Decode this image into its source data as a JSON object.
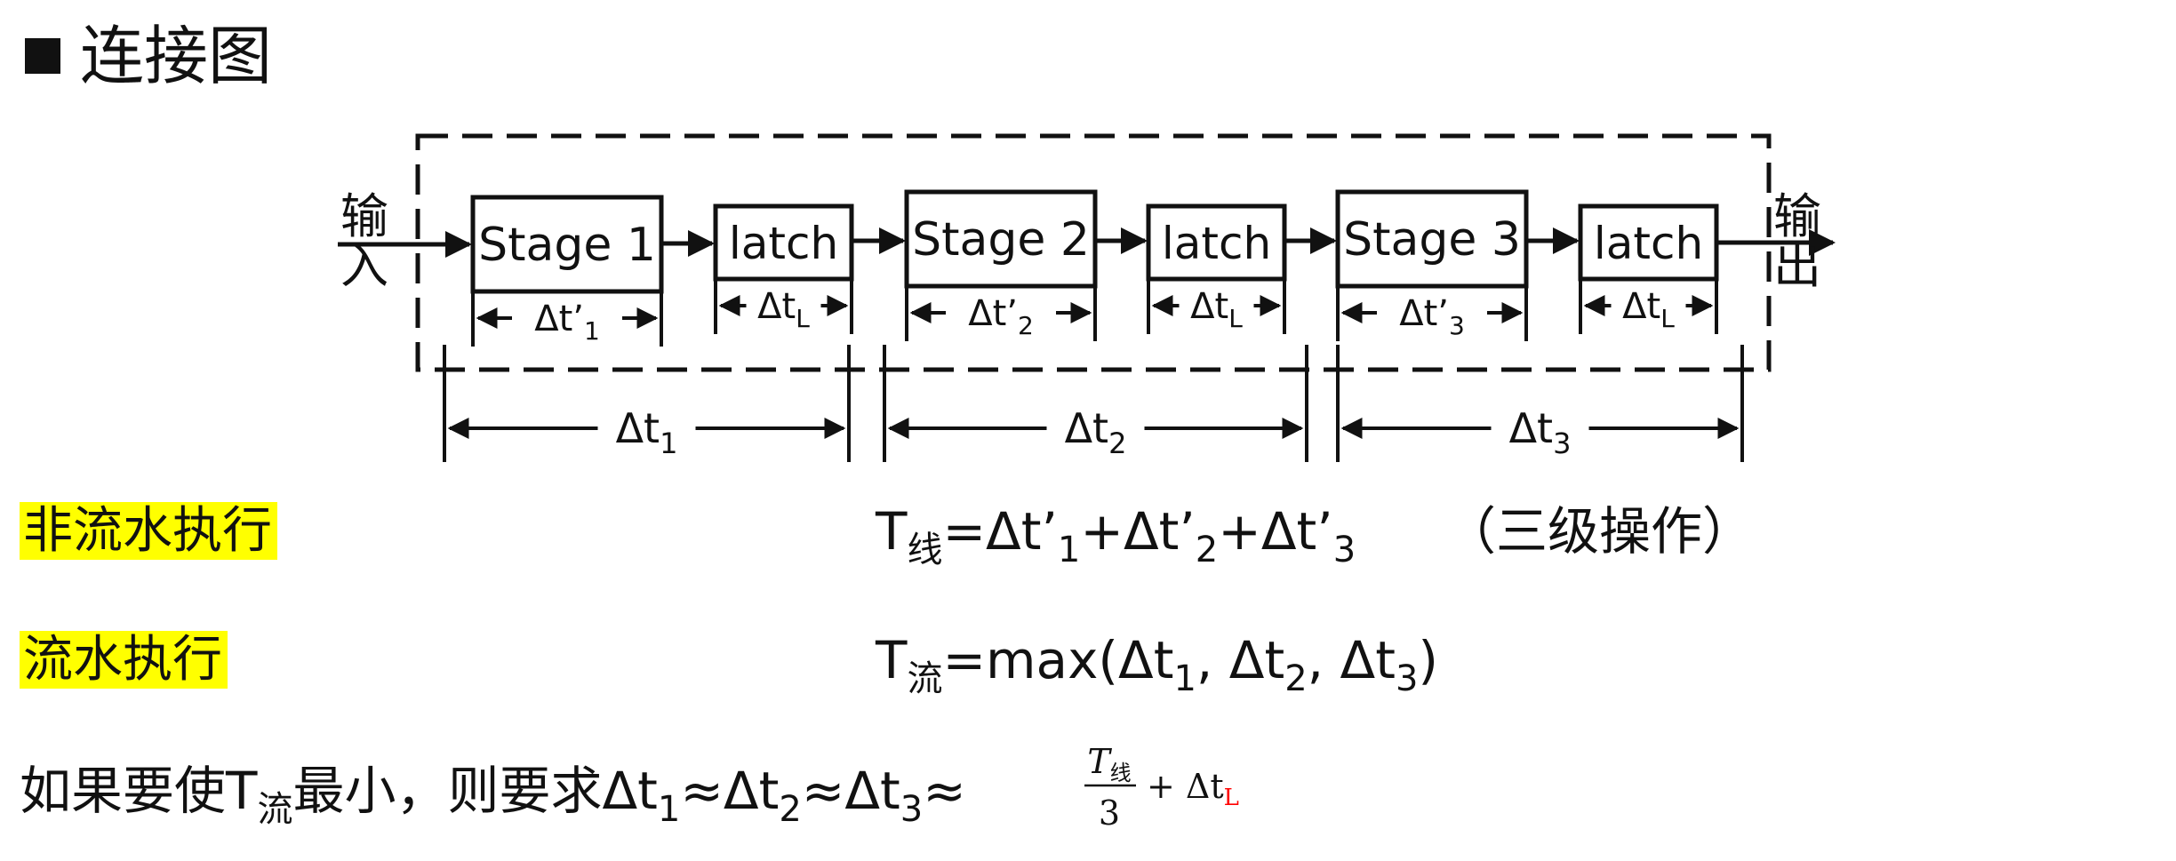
{
  "title": "连接图",
  "io": {
    "input": [
      "输",
      "入"
    ],
    "output": [
      "输",
      "出"
    ]
  },
  "blocks": [
    {
      "label": "Stage 1",
      "dim_base": "Δt’",
      "dim_sub": "1"
    },
    {
      "label": "latch",
      "dim_base": "Δt",
      "dim_sub": "L"
    },
    {
      "label": "Stage 2",
      "dim_base": "Δt’",
      "dim_sub": "2"
    },
    {
      "label": "latch",
      "dim_base": "Δt",
      "dim_sub": "L"
    },
    {
      "label": "Stage 3",
      "dim_base": "Δt’",
      "dim_sub": "3"
    },
    {
      "label": "latch",
      "dim_base": "Δt",
      "dim_sub": "L"
    }
  ],
  "segments": [
    {
      "base": "Δt",
      "sub": "1"
    },
    {
      "base": "Δt",
      "sub": "2"
    },
    {
      "base": "Δt",
      "sub": "3"
    }
  ],
  "rows": {
    "non_pipeline": {
      "label": "非流水执行",
      "T": "T",
      "T_sub": "线",
      "expr": [
        "=Δt’",
        "1",
        "+Δt’",
        "2",
        "+Δt’",
        "3"
      ],
      "note": "（三级操作）"
    },
    "pipeline": {
      "label": "流水执行",
      "T": "T",
      "T_sub": "流",
      "expr": [
        "=max(Δt",
        "1",
        ", Δt",
        "2",
        ", Δt",
        "3",
        ")"
      ]
    },
    "condition": {
      "prefix": "如果要使T",
      "prefix_sub": "流",
      "middle": "最小，则要求Δt",
      "s1": "1",
      "a1": "≈Δt",
      "s2": "2",
      "a2": "≈Δt",
      "s3": "3",
      "a3": "≈",
      "frac_num": "T",
      "frac_num_sub": "线",
      "frac_den": "3",
      "plus": "+ Δt",
      "plus_sub": "L"
    }
  },
  "colors": {
    "ink": "#111111",
    "highlight": "#ffff00",
    "accent_red": "#ff0000"
  }
}
